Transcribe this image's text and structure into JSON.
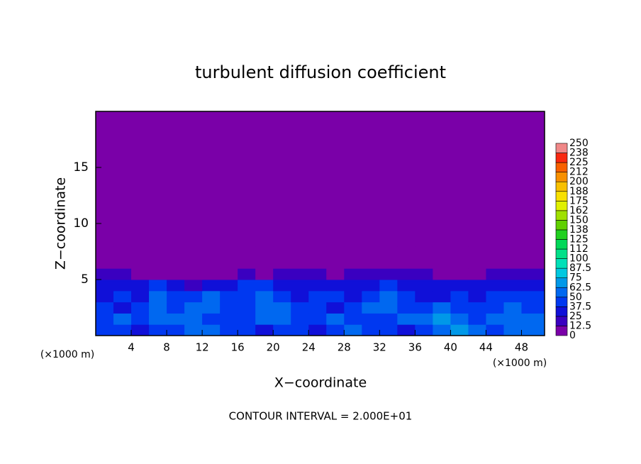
{
  "chart_data": {
    "type": "heatmap",
    "title": "turbulent diffusion coefficient",
    "x_label": "X−coordinate",
    "y_label": "Z−coordinate",
    "x_unit": "(×1000 m)",
    "footnote": "CONTOUR INTERVAL = 2.000E+01",
    "xlim": [
      0,
      50.6
    ],
    "ylim": [
      0,
      20
    ],
    "xticks": [
      4,
      8,
      12,
      16,
      20,
      24,
      28,
      32,
      36,
      40,
      44,
      48
    ],
    "yticks": [
      5,
      10,
      15
    ],
    "x_edges": [
      0,
      2,
      4,
      6,
      8,
      10,
      12,
      14,
      16,
      18,
      20,
      22,
      24,
      26,
      28,
      30,
      32,
      34,
      36,
      38,
      40,
      42,
      44,
      46,
      48,
      50.6
    ],
    "z_edges": [
      0,
      1,
      2,
      3,
      4,
      5,
      6,
      8,
      20
    ],
    "values": [
      [
        40,
        45,
        35,
        40,
        45,
        55,
        50,
        45,
        40,
        35,
        40,
        45,
        35,
        40,
        50,
        45,
        40,
        35,
        45,
        60,
        65,
        50,
        45,
        55,
        50
      ],
      [
        45,
        50,
        40,
        55,
        60,
        50,
        45,
        40,
        45,
        50,
        55,
        40,
        45,
        50,
        45,
        40,
        45,
        60,
        55,
        65,
        55,
        45,
        50,
        60,
        55
      ],
      [
        40,
        35,
        45,
        60,
        45,
        55,
        50,
        40,
        45,
        55,
        50,
        45,
        40,
        35,
        45,
        50,
        55,
        45,
        40,
        50,
        45,
        40,
        45,
        50,
        45
      ],
      [
        35,
        40,
        30,
        50,
        40,
        45,
        55,
        40,
        45,
        50,
        40,
        35,
        45,
        40,
        35,
        45,
        50,
        40,
        35,
        30,
        40,
        35,
        40,
        45,
        40
      ],
      [
        30,
        35,
        25,
        40,
        30,
        20,
        25,
        30,
        40,
        40,
        35,
        30,
        35,
        30,
        30,
        35,
        40,
        30,
        30,
        25,
        30,
        30,
        30,
        35,
        35
      ],
      [
        20,
        15,
        5,
        10,
        5,
        2,
        5,
        5,
        15,
        10,
        15,
        20,
        20,
        10,
        15,
        20,
        20,
        15,
        15,
        10,
        10,
        5,
        15,
        20,
        20
      ],
      [
        0,
        0,
        0,
        0,
        0,
        0,
        0,
        0,
        10,
        0,
        0,
        0,
        0,
        0,
        0,
        0,
        0,
        0,
        0,
        0,
        0,
        0,
        0,
        0,
        0
      ],
      [
        0,
        0,
        0,
        0,
        0,
        0,
        0,
        0,
        0,
        0,
        0,
        0,
        0,
        0,
        0,
        0,
        0,
        0,
        0,
        0,
        0,
        0,
        0,
        0,
        0
      ]
    ],
    "levels": [
      0,
      12.5,
      25,
      37.5,
      50,
      62.5,
      75,
      87.5,
      100,
      112,
      125,
      138,
      150,
      162,
      175,
      188,
      200,
      212,
      225,
      238,
      250
    ],
    "colors": [
      "#7a00a8",
      "#3a00c0",
      "#1010d8",
      "#0038f0",
      "#0068f0",
      "#0098e8",
      "#00c8e0",
      "#00e0b8",
      "#00e088",
      "#00d858",
      "#20d020",
      "#60d000",
      "#a0e000",
      "#e0f000",
      "#f8e000",
      "#f8c000",
      "#f89000",
      "#f86000",
      "#f82810",
      "#f08888"
    ]
  }
}
